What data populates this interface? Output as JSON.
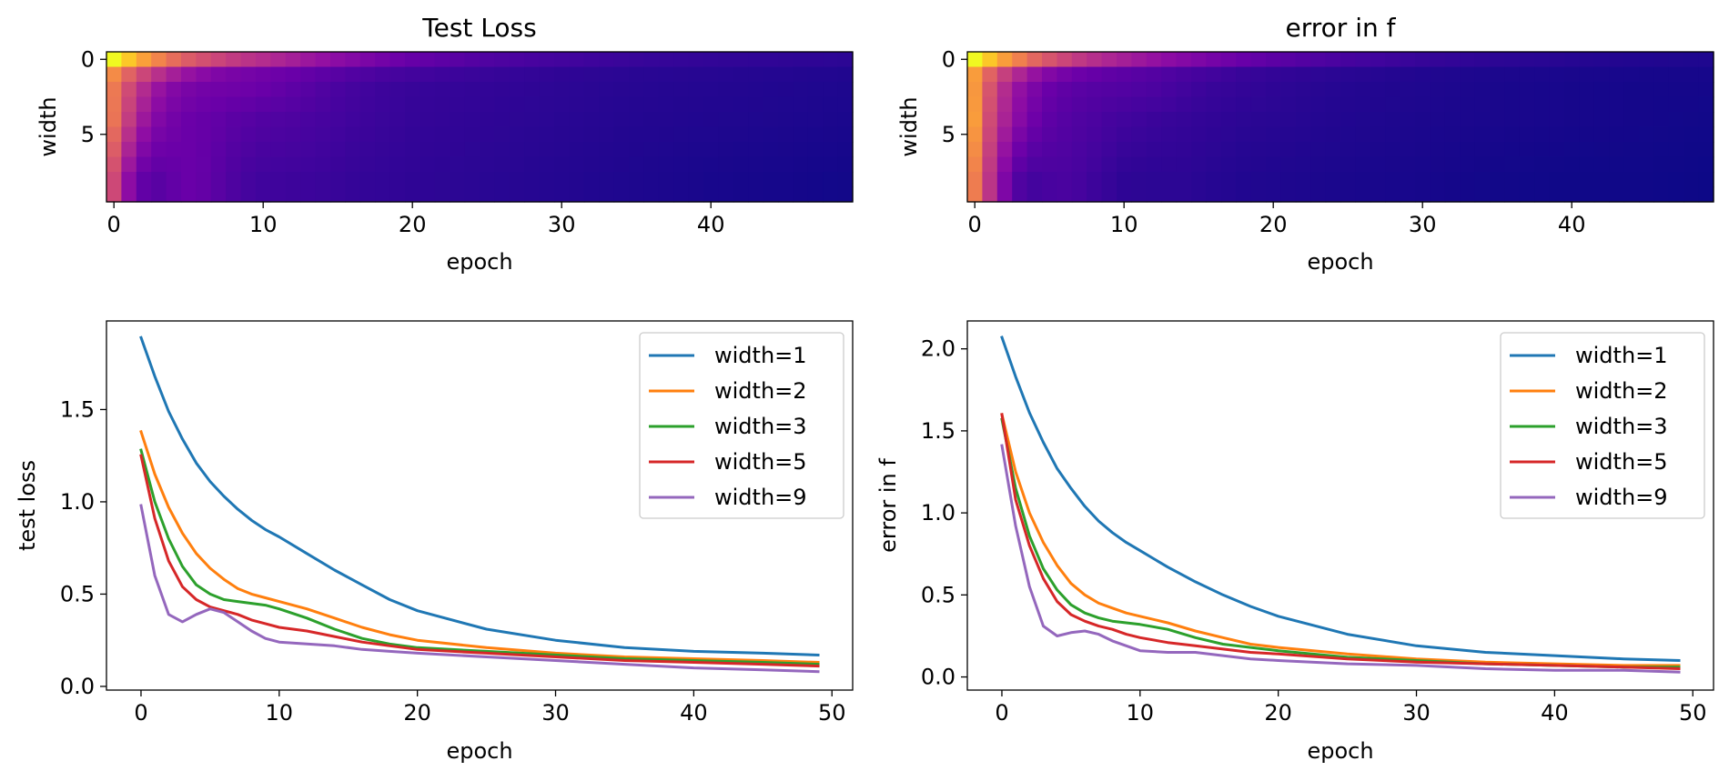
{
  "chart_data": [
    {
      "type": "heatmap",
      "title": "Test Loss",
      "xlabel": "epoch",
      "ylabel": "width",
      "xticks": [
        "0",
        "10",
        "20",
        "30",
        "40"
      ],
      "yticks": [
        "0",
        "5"
      ],
      "xlim": [
        -0.5,
        49.5
      ],
      "ylim": [
        9.5,
        -0.5
      ],
      "colormap": "plasma",
      "n_rows": 10,
      "n_cols": 50,
      "value_range": [
        0.06,
        1.89
      ],
      "row_curves": [
        {
          "x": [
            0,
            1,
            2,
            3,
            4,
            5,
            6,
            7,
            8,
            9,
            10,
            12,
            14,
            16,
            18,
            20,
            25,
            30,
            35,
            40,
            45,
            49
          ],
          "y": [
            1.89,
            1.68,
            1.49,
            1.34,
            1.21,
            1.11,
            1.03,
            0.96,
            0.9,
            0.85,
            0.81,
            0.72,
            0.63,
            0.55,
            0.47,
            0.41,
            0.31,
            0.25,
            0.21,
            0.19,
            0.18,
            0.17
          ]
        },
        {
          "x": [
            0,
            1,
            2,
            3,
            4,
            5,
            6,
            7,
            8,
            9,
            10,
            12,
            14,
            16,
            18,
            20,
            25,
            30,
            35,
            40,
            45,
            49
          ],
          "y": [
            1.38,
            1.15,
            0.97,
            0.83,
            0.72,
            0.64,
            0.58,
            0.53,
            0.5,
            0.48,
            0.46,
            0.42,
            0.37,
            0.32,
            0.28,
            0.25,
            0.21,
            0.18,
            0.16,
            0.15,
            0.14,
            0.13
          ]
        },
        {
          "x": [
            0,
            1,
            2,
            3,
            4,
            5,
            6,
            7,
            8,
            9,
            10,
            12,
            14,
            16,
            18,
            20,
            25,
            30,
            35,
            40,
            45,
            49
          ],
          "y": [
            1.28,
            1.0,
            0.8,
            0.65,
            0.55,
            0.5,
            0.47,
            0.46,
            0.45,
            0.44,
            0.42,
            0.37,
            0.31,
            0.26,
            0.23,
            0.21,
            0.19,
            0.17,
            0.15,
            0.14,
            0.13,
            0.12
          ]
        },
        {
          "x": [
            0,
            1,
            2,
            3,
            4,
            5,
            6,
            7,
            8,
            9,
            10,
            12,
            14,
            16,
            18,
            20,
            25,
            30,
            35,
            40,
            45,
            49
          ],
          "y": [
            1.25,
            0.91,
            0.68,
            0.54,
            0.47,
            0.43,
            0.41,
            0.39,
            0.36,
            0.34,
            0.32,
            0.3,
            0.27,
            0.24,
            0.22,
            0.2,
            0.18,
            0.16,
            0.14,
            0.13,
            0.12,
            0.11
          ]
        },
        {
          "x": [
            0,
            1,
            2,
            3,
            4,
            5,
            6,
            7,
            8,
            9,
            10,
            12,
            14,
            16,
            18,
            20,
            25,
            30,
            35,
            40,
            45,
            49
          ],
          "y": [
            0.98,
            0.6,
            0.39,
            0.35,
            0.39,
            0.42,
            0.4,
            0.35,
            0.3,
            0.26,
            0.24,
            0.23,
            0.22,
            0.2,
            0.19,
            0.18,
            0.16,
            0.14,
            0.12,
            0.1,
            0.09,
            0.08
          ]
        }
      ],
      "row_curve_widths": [
        1,
        2,
        3,
        5,
        9
      ]
    },
    {
      "type": "heatmap",
      "title": "error in f",
      "xlabel": "epoch",
      "ylabel": "width",
      "xticks": [
        "0",
        "10",
        "20",
        "30",
        "40"
      ],
      "yticks": [
        "0",
        "5"
      ],
      "xlim": [
        -0.5,
        49.5
      ],
      "ylim": [
        9.5,
        -0.5
      ],
      "colormap": "plasma",
      "n_rows": 10,
      "n_cols": 50,
      "value_range": [
        0.03,
        2.07
      ],
      "row_curves": [
        {
          "x": [
            0,
            1,
            2,
            3,
            4,
            5,
            6,
            7,
            8,
            9,
            10,
            12,
            14,
            16,
            18,
            20,
            25,
            30,
            35,
            40,
            45,
            49
          ],
          "y": [
            2.07,
            1.83,
            1.61,
            1.43,
            1.27,
            1.15,
            1.04,
            0.95,
            0.88,
            0.82,
            0.77,
            0.67,
            0.58,
            0.5,
            0.43,
            0.37,
            0.26,
            0.19,
            0.15,
            0.13,
            0.11,
            0.1
          ]
        },
        {
          "x": [
            0,
            1,
            2,
            3,
            4,
            5,
            6,
            7,
            8,
            9,
            10,
            12,
            14,
            16,
            18,
            20,
            25,
            30,
            35,
            40,
            45,
            49
          ],
          "y": [
            1.6,
            1.25,
            1.0,
            0.82,
            0.68,
            0.57,
            0.5,
            0.45,
            0.42,
            0.39,
            0.37,
            0.33,
            0.28,
            0.24,
            0.2,
            0.18,
            0.14,
            0.11,
            0.09,
            0.08,
            0.07,
            0.07
          ]
        },
        {
          "x": [
            0,
            1,
            2,
            3,
            4,
            5,
            6,
            7,
            8,
            9,
            10,
            12,
            14,
            16,
            18,
            20,
            25,
            30,
            35,
            40,
            45,
            49
          ],
          "y": [
            1.57,
            1.15,
            0.86,
            0.66,
            0.53,
            0.44,
            0.39,
            0.36,
            0.34,
            0.33,
            0.32,
            0.29,
            0.24,
            0.2,
            0.18,
            0.16,
            0.12,
            0.1,
            0.08,
            0.07,
            0.06,
            0.06
          ]
        },
        {
          "x": [
            0,
            1,
            2,
            3,
            4,
            5,
            6,
            7,
            8,
            9,
            10,
            12,
            14,
            16,
            18,
            20,
            25,
            30,
            35,
            40,
            45,
            49
          ],
          "y": [
            1.6,
            1.08,
            0.8,
            0.6,
            0.46,
            0.38,
            0.34,
            0.31,
            0.29,
            0.26,
            0.24,
            0.21,
            0.19,
            0.17,
            0.15,
            0.14,
            0.11,
            0.09,
            0.08,
            0.07,
            0.06,
            0.05
          ]
        },
        {
          "x": [
            0,
            1,
            2,
            3,
            4,
            5,
            6,
            7,
            8,
            9,
            10,
            12,
            14,
            16,
            18,
            20,
            25,
            30,
            35,
            40,
            45,
            49
          ],
          "y": [
            1.41,
            0.92,
            0.55,
            0.31,
            0.25,
            0.27,
            0.28,
            0.26,
            0.22,
            0.19,
            0.16,
            0.15,
            0.15,
            0.13,
            0.11,
            0.1,
            0.08,
            0.07,
            0.05,
            0.04,
            0.04,
            0.03
          ]
        }
      ],
      "row_curve_widths": [
        1,
        2,
        3,
        5,
        9
      ]
    },
    {
      "type": "line",
      "title": "",
      "xlabel": "epoch",
      "ylabel": "test loss",
      "xlim": [
        -2.5,
        51.5
      ],
      "ylim": [
        -0.02,
        1.98
      ],
      "xticks": [
        0,
        10,
        20,
        30,
        40,
        50
      ],
      "yticks": [
        0.0,
        0.5,
        1.0,
        1.5
      ],
      "ytick_labels": [
        "0.0",
        "0.5",
        "1.0",
        "1.5"
      ],
      "legend_position": "upper right",
      "series": [
        {
          "name": "width=1",
          "color": "#1f77b4",
          "x": [
            0,
            1,
            2,
            3,
            4,
            5,
            6,
            7,
            8,
            9,
            10,
            12,
            14,
            16,
            18,
            20,
            25,
            30,
            35,
            40,
            45,
            49
          ],
          "y": [
            1.89,
            1.68,
            1.49,
            1.34,
            1.21,
            1.11,
            1.03,
            0.96,
            0.9,
            0.85,
            0.81,
            0.72,
            0.63,
            0.55,
            0.47,
            0.41,
            0.31,
            0.25,
            0.21,
            0.19,
            0.18,
            0.17
          ]
        },
        {
          "name": "width=2",
          "color": "#ff7f0e",
          "x": [
            0,
            1,
            2,
            3,
            4,
            5,
            6,
            7,
            8,
            9,
            10,
            12,
            14,
            16,
            18,
            20,
            25,
            30,
            35,
            40,
            45,
            49
          ],
          "y": [
            1.38,
            1.15,
            0.97,
            0.83,
            0.72,
            0.64,
            0.58,
            0.53,
            0.5,
            0.48,
            0.46,
            0.42,
            0.37,
            0.32,
            0.28,
            0.25,
            0.21,
            0.18,
            0.16,
            0.15,
            0.14,
            0.13
          ]
        },
        {
          "name": "width=3",
          "color": "#2ca02c",
          "x": [
            0,
            1,
            2,
            3,
            4,
            5,
            6,
            7,
            8,
            9,
            10,
            12,
            14,
            16,
            18,
            20,
            25,
            30,
            35,
            40,
            45,
            49
          ],
          "y": [
            1.28,
            1.0,
            0.8,
            0.65,
            0.55,
            0.5,
            0.47,
            0.46,
            0.45,
            0.44,
            0.42,
            0.37,
            0.31,
            0.26,
            0.23,
            0.21,
            0.19,
            0.17,
            0.15,
            0.14,
            0.13,
            0.12
          ]
        },
        {
          "name": "width=5",
          "color": "#d62728",
          "x": [
            0,
            1,
            2,
            3,
            4,
            5,
            6,
            7,
            8,
            9,
            10,
            12,
            14,
            16,
            18,
            20,
            25,
            30,
            35,
            40,
            45,
            49
          ],
          "y": [
            1.25,
            0.91,
            0.68,
            0.54,
            0.47,
            0.43,
            0.41,
            0.39,
            0.36,
            0.34,
            0.32,
            0.3,
            0.27,
            0.24,
            0.22,
            0.2,
            0.18,
            0.16,
            0.14,
            0.13,
            0.12,
            0.11
          ]
        },
        {
          "name": "width=9",
          "color": "#9467bd",
          "x": [
            0,
            1,
            2,
            3,
            4,
            5,
            6,
            7,
            8,
            9,
            10,
            12,
            14,
            16,
            18,
            20,
            25,
            30,
            35,
            40,
            45,
            49
          ],
          "y": [
            0.98,
            0.6,
            0.39,
            0.35,
            0.39,
            0.42,
            0.4,
            0.35,
            0.3,
            0.26,
            0.24,
            0.23,
            0.22,
            0.2,
            0.19,
            0.18,
            0.16,
            0.14,
            0.12,
            0.1,
            0.09,
            0.08
          ]
        }
      ]
    },
    {
      "type": "line",
      "title": "",
      "xlabel": "epoch",
      "ylabel": "error in f",
      "xlim": [
        -2.5,
        51.5
      ],
      "ylim": [
        -0.08,
        2.17
      ],
      "xticks": [
        0,
        10,
        20,
        30,
        40,
        50
      ],
      "yticks": [
        0.0,
        0.5,
        1.0,
        1.5,
        2.0
      ],
      "ytick_labels": [
        "0.0",
        "0.5",
        "1.0",
        "1.5",
        "2.0"
      ],
      "legend_position": "upper right",
      "series": [
        {
          "name": "width=1",
          "color": "#1f77b4",
          "x": [
            0,
            1,
            2,
            3,
            4,
            5,
            6,
            7,
            8,
            9,
            10,
            12,
            14,
            16,
            18,
            20,
            25,
            30,
            35,
            40,
            45,
            49
          ],
          "y": [
            2.07,
            1.83,
            1.61,
            1.43,
            1.27,
            1.15,
            1.04,
            0.95,
            0.88,
            0.82,
            0.77,
            0.67,
            0.58,
            0.5,
            0.43,
            0.37,
            0.26,
            0.19,
            0.15,
            0.13,
            0.11,
            0.1
          ]
        },
        {
          "name": "width=2",
          "color": "#ff7f0e",
          "x": [
            0,
            1,
            2,
            3,
            4,
            5,
            6,
            7,
            8,
            9,
            10,
            12,
            14,
            16,
            18,
            20,
            25,
            30,
            35,
            40,
            45,
            49
          ],
          "y": [
            1.6,
            1.25,
            1.0,
            0.82,
            0.68,
            0.57,
            0.5,
            0.45,
            0.42,
            0.39,
            0.37,
            0.33,
            0.28,
            0.24,
            0.2,
            0.18,
            0.14,
            0.11,
            0.09,
            0.08,
            0.07,
            0.07
          ]
        },
        {
          "name": "width=3",
          "color": "#2ca02c",
          "x": [
            0,
            1,
            2,
            3,
            4,
            5,
            6,
            7,
            8,
            9,
            10,
            12,
            14,
            16,
            18,
            20,
            25,
            30,
            35,
            40,
            45,
            49
          ],
          "y": [
            1.57,
            1.15,
            0.86,
            0.66,
            0.53,
            0.44,
            0.39,
            0.36,
            0.34,
            0.33,
            0.32,
            0.29,
            0.24,
            0.2,
            0.18,
            0.16,
            0.12,
            0.1,
            0.08,
            0.07,
            0.06,
            0.06
          ]
        },
        {
          "name": "width=5",
          "color": "#d62728",
          "x": [
            0,
            1,
            2,
            3,
            4,
            5,
            6,
            7,
            8,
            9,
            10,
            12,
            14,
            16,
            18,
            20,
            25,
            30,
            35,
            40,
            45,
            49
          ],
          "y": [
            1.6,
            1.08,
            0.8,
            0.6,
            0.46,
            0.38,
            0.34,
            0.31,
            0.29,
            0.26,
            0.24,
            0.21,
            0.19,
            0.17,
            0.15,
            0.14,
            0.11,
            0.09,
            0.08,
            0.07,
            0.06,
            0.05
          ]
        },
        {
          "name": "width=9",
          "color": "#9467bd",
          "x": [
            0,
            1,
            2,
            3,
            4,
            5,
            6,
            7,
            8,
            9,
            10,
            12,
            14,
            16,
            18,
            20,
            25,
            30,
            35,
            40,
            45,
            49
          ],
          "y": [
            1.41,
            0.92,
            0.55,
            0.31,
            0.25,
            0.27,
            0.28,
            0.26,
            0.22,
            0.19,
            0.16,
            0.15,
            0.15,
            0.13,
            0.11,
            0.1,
            0.08,
            0.07,
            0.05,
            0.04,
            0.04,
            0.03
          ]
        }
      ]
    }
  ]
}
